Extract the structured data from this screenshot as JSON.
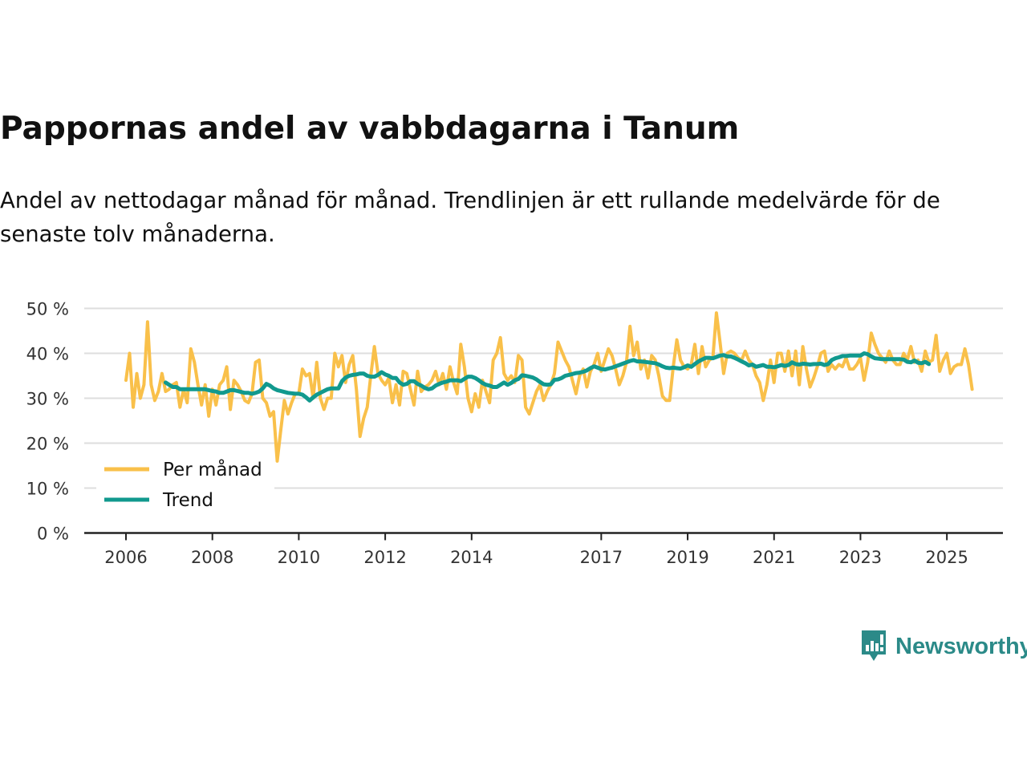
{
  "header": {
    "title": "Pappornas andel av vabbdagarna i Tanum",
    "subtitle": "Andel av nettodagar månad för månad. Trendlinjen är ett rullande medelvärde för de senaste tolv månaderna."
  },
  "brand": {
    "name": "Newsworthy",
    "icon": "newsworthy-chart-icon",
    "color": "#2b8a88"
  },
  "chart_data": {
    "type": "line",
    "title": "Pappornas andel av vabbdagarna i Tanum",
    "xlabel": "",
    "ylabel": "",
    "xlim": [
      2005.9,
      2026.5
    ],
    "ylim": [
      0,
      50
    ],
    "y_ticks": [
      0,
      10,
      20,
      30,
      40,
      50
    ],
    "y_tick_labels": [
      "0 %",
      "10 %",
      "20 %",
      "30 %",
      "40 %",
      "50 %"
    ],
    "x_ticks": [
      2006,
      2008,
      2010,
      2012,
      2014,
      2017,
      2019,
      2021,
      2023,
      2025
    ],
    "x_tick_labels": [
      "2006",
      "2008",
      "2010",
      "2012",
      "2014",
      "2017",
      "2019",
      "2021",
      "2023",
      "2025"
    ],
    "grid": true,
    "legend_position": "bottom-left",
    "series": [
      {
        "name": "Per månad",
        "color": "#f9c04a",
        "start": 2006.0,
        "step": 0.083333,
        "values": [
          34,
          40,
          28,
          35.5,
          30,
          33,
          47,
          33,
          29.5,
          31.5,
          35.5,
          31.5,
          32,
          33,
          33.5,
          28,
          32,
          29,
          41,
          38,
          33,
          28.5,
          33,
          26,
          32,
          28.5,
          33,
          34,
          37,
          27.5,
          34,
          33,
          31.5,
          29.5,
          29,
          31,
          38,
          38.5,
          30,
          29,
          26,
          27,
          16,
          23,
          29.5,
          26.5,
          29,
          31,
          31,
          36.5,
          35,
          35.5,
          30,
          38,
          30,
          27.5,
          30,
          30,
          40,
          37,
          39.5,
          33.5,
          37.5,
          39.5,
          32,
          21.5,
          25.5,
          28,
          35,
          41.5,
          35.5,
          34,
          33,
          34.5,
          29,
          33,
          28.5,
          36,
          35.5,
          32,
          28.5,
          36,
          31.5,
          32.5,
          33,
          34,
          36,
          33,
          35.5,
          32,
          37,
          33.5,
          31,
          42,
          37,
          30,
          27,
          31,
          28,
          34,
          31.5,
          29,
          38.5,
          40,
          43.5,
          35.5,
          34,
          35,
          33.5,
          39.5,
          38.5,
          28,
          26.5,
          29,
          31.5,
          33,
          29.5,
          31.5,
          33,
          35.5,
          42.5,
          40.5,
          38.5,
          37,
          34,
          31,
          35,
          36.5,
          32.5,
          36,
          37.5,
          40,
          36,
          38.5,
          41,
          39.5,
          36.5,
          33,
          35,
          38,
          46,
          39.5,
          42.5,
          36.5,
          38.5,
          34.5,
          39.5,
          38.5,
          35,
          30.5,
          29.5,
          29.5,
          37,
          43,
          38.5,
          37,
          36.5,
          37.5,
          42,
          35.5,
          41.5,
          37,
          38.5,
          39,
          49,
          42.5,
          35.5,
          40,
          40.5,
          40,
          39,
          38.5,
          40.5,
          38.5,
          37.5,
          35,
          33.5,
          29.5,
          33,
          38.5,
          33.5,
          40,
          40,
          36,
          40.5,
          35,
          40.5,
          33,
          41.5,
          36.5,
          32.5,
          34.5,
          37,
          40,
          40.5,
          36,
          37.5,
          36.5,
          37.5,
          37,
          39,
          36.5,
          36.5,
          37.5,
          39,
          34,
          38,
          44.5,
          42,
          40,
          39,
          38,
          40.5,
          38.5,
          37.5,
          37.5,
          40,
          38.5,
          41.5,
          38,
          38.5,
          36,
          40.5,
          38,
          38.5,
          44,
          36,
          38.5,
          40,
          35.5,
          37,
          37.5,
          37.5,
          41,
          37.5,
          32
        ]
      },
      {
        "name": "Trend",
        "color": "#11998e",
        "start": 2006.917,
        "step": 0.083333,
        "values": [
          33.5,
          33,
          32.5,
          32.5,
          32,
          32,
          32,
          32,
          32,
          32,
          32,
          32,
          31.8,
          31.6,
          31.5,
          31.2,
          31.2,
          31.5,
          31.8,
          31.8,
          31.6,
          31.4,
          31.2,
          31.2,
          31,
          31.2,
          31.5,
          32.2,
          33.2,
          32.8,
          32.2,
          31.8,
          31.6,
          31.4,
          31.2,
          31.1,
          31,
          31,
          30.8,
          30.2,
          29.5,
          30.2,
          30.8,
          31.2,
          31.6,
          32,
          32.2,
          32.2,
          32.2,
          33.8,
          34.6,
          35,
          35.2,
          35.3,
          35.5,
          35.5,
          35,
          34.8,
          34.8,
          35.2,
          35.8,
          35.3,
          35,
          34.5,
          34.5,
          33.5,
          33,
          33.2,
          33.8,
          33.8,
          33.2,
          32.8,
          32.3,
          32,
          32.2,
          32.8,
          33.2,
          33.5,
          33.7,
          34,
          34,
          34,
          33.8,
          34.3,
          34.8,
          34.8,
          34.5,
          34,
          33.4,
          33,
          32.8,
          32.5,
          32.5,
          33,
          33.5,
          33,
          33.4,
          34,
          34.3,
          35.1,
          35,
          34.8,
          34.6,
          34.2,
          33.6,
          33.1,
          33,
          33.1,
          34.1,
          34.2,
          34.5,
          35,
          35.2,
          35.4,
          35.6,
          35.7,
          35.9,
          36.2,
          36.7,
          37.1,
          36.8,
          36.5,
          36.4,
          36.6,
          36.8,
          37.1,
          37.4,
          37.7,
          38,
          38.3,
          38.5,
          38.2,
          38.2,
          38.1,
          38,
          37.9,
          37.8,
          37.5,
          37.1,
          36.8,
          36.7,
          36.8,
          36.7,
          36.6,
          36.9,
          37.3,
          37,
          37.6,
          38.2,
          38.6,
          39,
          39,
          38.9,
          39.2,
          39.5,
          39.6,
          39.3,
          39.3,
          39,
          38.6,
          38.2,
          37.8,
          37.3,
          37.5,
          37,
          37.2,
          37.4,
          37,
          37,
          36.9,
          37.1,
          37.4,
          37.2,
          37.4,
          38,
          37.6,
          37.5,
          37.7,
          37.6,
          37.5,
          37.6,
          37.6,
          37.7,
          37.4,
          37.6,
          38.5,
          38.9,
          39.1,
          39.4,
          39.4,
          39.5,
          39.5,
          39.5,
          39.5,
          40,
          39.8,
          39.3,
          38.9,
          38.8,
          38.7,
          38.7,
          38.7,
          38.7,
          38.7,
          38.7,
          38.6,
          38.1,
          38,
          38.4,
          37.9,
          37.8,
          38.1,
          37.6
        ]
      }
    ]
  }
}
